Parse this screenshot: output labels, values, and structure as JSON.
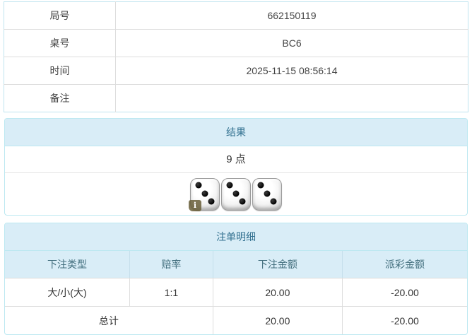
{
  "info_table": {
    "rows": [
      {
        "label": "局号",
        "value": "662150119"
      },
      {
        "label": "桌号",
        "value": "BC6"
      },
      {
        "label": "时间",
        "value": "2025-11-15 08:56:14"
      },
      {
        "label": "备注",
        "value": ""
      }
    ]
  },
  "result_panel": {
    "title": "结果",
    "points": "9 点",
    "dice": [
      3,
      3,
      3
    ],
    "info_badge": "i"
  },
  "bets_panel": {
    "title": "注单明细",
    "columns": [
      "下注类型",
      "赔率",
      "下注金额",
      "派彩金额"
    ],
    "rows": [
      {
        "type": "大/小(大)",
        "odds": "1:1",
        "bet": "20.00",
        "payout": "-20.00"
      }
    ],
    "total_label": "总计",
    "total_bet": "20.00",
    "total_payout": "-20.00"
  },
  "colors": {
    "panel_header_bg": "#d9edf7",
    "panel_header_text": "#31708f",
    "panel_border": "#bce8f1",
    "cell_border": "#dddddd",
    "negative_text": "#e23434",
    "body_text": "#333333"
  }
}
